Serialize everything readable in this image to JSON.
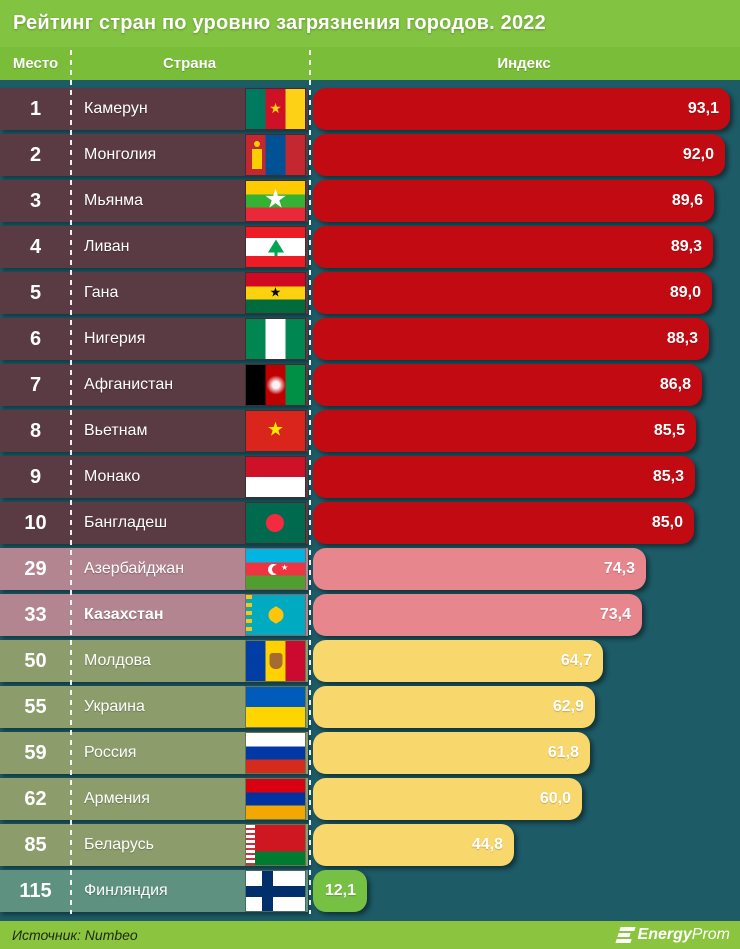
{
  "title": "Рейтинг стран по уровню загрязнения городов. 2022",
  "header": {
    "rank": "Место",
    "country": "Страна",
    "index": "Индекс"
  },
  "colors": {
    "background": "#1d5b67",
    "title_band": "#83c342",
    "header_band": "#7abd38",
    "footer_band": "#8bc53f",
    "groups": {
      "red": {
        "strip": "#5a3a43",
        "bar": "#c20a12"
      },
      "pink": {
        "strip": "#b28590",
        "bar": "#e8868e"
      },
      "yellow": {
        "strip": "#8d9c6b",
        "bar": "#f8d76c"
      },
      "green": {
        "strip": "#5e917f",
        "bar": "#76c143"
      }
    }
  },
  "rows": [
    {
      "rank": "1",
      "country": "Камерун",
      "flag": "cameroon",
      "value": 93.1,
      "display": "93,1",
      "group": "red",
      "bold": false
    },
    {
      "rank": "2",
      "country": "Монголия",
      "flag": "mongolia",
      "value": 92.0,
      "display": "92,0",
      "group": "red",
      "bold": false
    },
    {
      "rank": "3",
      "country": "Мьянма",
      "flag": "myanmar",
      "value": 89.6,
      "display": "89,6",
      "group": "red",
      "bold": false
    },
    {
      "rank": "4",
      "country": "Ливан",
      "flag": "lebanon",
      "value": 89.3,
      "display": "89,3",
      "group": "red",
      "bold": false
    },
    {
      "rank": "5",
      "country": "Гана",
      "flag": "ghana",
      "value": 89.0,
      "display": "89,0",
      "group": "red",
      "bold": false
    },
    {
      "rank": "6",
      "country": "Нигерия",
      "flag": "nigeria",
      "value": 88.3,
      "display": "88,3",
      "group": "red",
      "bold": false
    },
    {
      "rank": "7",
      "country": "Афганистан",
      "flag": "afghanistan",
      "value": 86.8,
      "display": "86,8",
      "group": "red",
      "bold": false
    },
    {
      "rank": "8",
      "country": "Вьетнам",
      "flag": "vietnam",
      "value": 85.5,
      "display": "85,5",
      "group": "red",
      "bold": false
    },
    {
      "rank": "9",
      "country": "Монако",
      "flag": "monaco",
      "value": 85.3,
      "display": "85,3",
      "group": "red",
      "bold": false
    },
    {
      "rank": "10",
      "country": "Бангладеш",
      "flag": "bangladesh",
      "value": 85.0,
      "display": "85,0",
      "group": "red",
      "bold": false
    },
    {
      "rank": "29",
      "country": "Азербайджан",
      "flag": "azerbaijan",
      "value": 74.3,
      "display": "74,3",
      "group": "pink",
      "bold": false
    },
    {
      "rank": "33",
      "country": "Казахстан",
      "flag": "kazakhstan",
      "value": 73.4,
      "display": "73,4",
      "group": "pink",
      "bold": true
    },
    {
      "rank": "50",
      "country": "Молдова",
      "flag": "moldova",
      "value": 64.7,
      "display": "64,7",
      "group": "yellow",
      "bold": false
    },
    {
      "rank": "55",
      "country": "Украина",
      "flag": "ukraine",
      "value": 62.9,
      "display": "62,9",
      "group": "yellow",
      "bold": false
    },
    {
      "rank": "59",
      "country": "Россия",
      "flag": "russia",
      "value": 61.8,
      "display": "61,8",
      "group": "yellow",
      "bold": false
    },
    {
      "rank": "62",
      "country": "Армения",
      "flag": "armenia",
      "value": 60.0,
      "display": "60,0",
      "group": "yellow",
      "bold": false
    },
    {
      "rank": "85",
      "country": "Беларусь",
      "flag": "belarus",
      "value": 44.8,
      "display": "44,8",
      "group": "yellow",
      "bold": false
    },
    {
      "rank": "115",
      "country": "Финляндия",
      "flag": "finland",
      "value": 12.1,
      "display": "12,1",
      "group": "green",
      "bold": false
    }
  ],
  "footer": {
    "source": "Источник: Numbeo",
    "logo_bold": "Energy",
    "logo_light": "Prom"
  },
  "chart_data": {
    "type": "bar",
    "title": "Рейтинг стран по уровню загрязнения городов. 2022",
    "categories": [
      "Камерун",
      "Монголия",
      "Мьянма",
      "Ливан",
      "Гана",
      "Нигерия",
      "Афганистан",
      "Вьетнам",
      "Монако",
      "Бангладеш",
      "Азербайджан",
      "Казахстан",
      "Молдова",
      "Украина",
      "Россия",
      "Армения",
      "Беларусь",
      "Финляндия"
    ],
    "ranks": [
      1,
      2,
      3,
      4,
      5,
      6,
      7,
      8,
      9,
      10,
      29,
      33,
      50,
      55,
      59,
      62,
      85,
      115
    ],
    "values": [
      93.1,
      92.0,
      89.6,
      89.3,
      89.0,
      88.3,
      86.8,
      85.5,
      85.3,
      85.0,
      74.3,
      73.4,
      64.7,
      62.9,
      61.8,
      60.0,
      44.8,
      12.1
    ],
    "xlabel": "Индекс",
    "ylabel": "Страна",
    "xlim": [
      0,
      100
    ],
    "orientation": "horizontal",
    "grid": false,
    "legend": false,
    "source": "Numbeo"
  }
}
